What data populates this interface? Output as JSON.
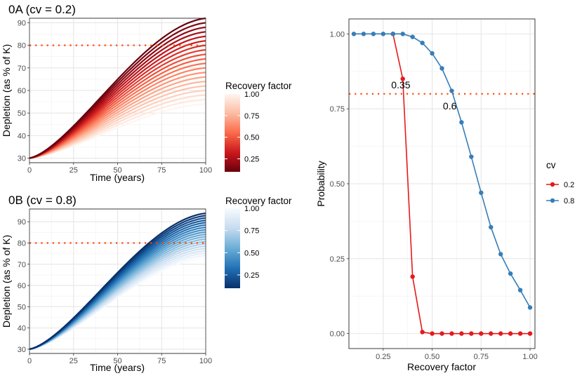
{
  "chart_data": [
    {
      "id": "panelA",
      "type": "line",
      "title": "0A (cv = 0.2)",
      "xlabel": "Time (years)",
      "ylabel": "Depletion (as % of K)",
      "xlim": [
        0,
        100
      ],
      "ylim": [
        28,
        92
      ],
      "xticks": [
        0,
        25,
        50,
        75,
        100
      ],
      "yticks": [
        30,
        40,
        50,
        60,
        70,
        80,
        90
      ],
      "reference_line": 80,
      "x_start": 0,
      "y_start": 30,
      "series_count": 20,
      "end_values_range": [
        54,
        92
      ],
      "color_scale": [
        "#67000d",
        "#cb181d",
        "#fb6a4a",
        "#fcbba1",
        "#fff5f0"
      ],
      "legend": {
        "title": "Recovery factor",
        "ticks": [
          "1.00",
          "0.75",
          "0.50",
          "0.25"
        ]
      }
    },
    {
      "id": "panelB",
      "type": "line",
      "title": "0B (cv = 0.8)",
      "xlabel": "Time (years)",
      "ylabel": "Depletion (as % of K)",
      "xlim": [
        0,
        100
      ],
      "ylim": [
        28,
        96
      ],
      "xticks": [
        0,
        25,
        50,
        75,
        100
      ],
      "yticks": [
        30,
        40,
        50,
        60,
        70,
        80,
        90
      ],
      "reference_line": 80,
      "x_start": 0,
      "y_start": 30,
      "series_count": 20,
      "end_values_range": [
        73,
        94
      ],
      "color_scale": [
        "#08306b",
        "#2171b5",
        "#6baed6",
        "#c6dbef",
        "#f7fbff"
      ],
      "legend": {
        "title": "Recovery factor",
        "ticks": [
          "1.00",
          "0.75",
          "0.50",
          "0.25"
        ]
      }
    },
    {
      "id": "panelC",
      "type": "line",
      "xlabel": "Recovery factor",
      "ylabel": "Probability",
      "xlim": [
        0.075,
        1.025
      ],
      "ylim": [
        -0.05,
        1.05
      ],
      "xticks": [
        "0.25",
        "0.50",
        "0.75",
        "1.00"
      ],
      "yticks": [
        "0.00",
        "0.25",
        "0.50",
        "0.75",
        "1.00"
      ],
      "reference_line": 0.8,
      "annotations": [
        {
          "label": "0.35",
          "x": 0.34,
          "y": 0.83
        },
        {
          "label": "0.6",
          "x": 0.59,
          "y": 0.76
        }
      ],
      "legend": {
        "title": "cv"
      },
      "series": [
        {
          "name": "0.2",
          "color": "#e41a1c",
          "x": [
            0.3,
            0.35,
            0.4,
            0.45,
            0.5,
            0.55,
            0.6,
            0.65,
            0.7,
            0.75,
            0.8,
            0.85,
            0.9,
            0.95,
            1.0
          ],
          "y": [
            1.0,
            0.85,
            0.19,
            0.005,
            0.0,
            0.0,
            0.0,
            0.0,
            0.0,
            0.0,
            0.0,
            0.0,
            0.0,
            0.0,
            0.0
          ]
        },
        {
          "name": "0.8",
          "color": "#377eb8",
          "x": [
            0.1,
            0.15,
            0.2,
            0.25,
            0.3,
            0.35,
            0.4,
            0.45,
            0.5,
            0.55,
            0.6,
            0.65,
            0.7,
            0.75,
            0.8,
            0.85,
            0.9,
            0.95,
            1.0
          ],
          "y": [
            1.0,
            1.0,
            1.0,
            1.0,
            1.0,
            1.0,
            0.99,
            0.97,
            0.935,
            0.885,
            0.81,
            0.705,
            0.59,
            0.47,
            0.355,
            0.265,
            0.2,
            0.145,
            0.087
          ]
        }
      ]
    }
  ]
}
